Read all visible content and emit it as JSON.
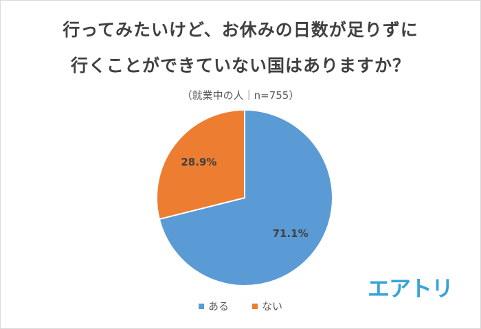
{
  "chart_data": {
    "type": "pie",
    "title_line1": "行ってみたいけど、お休みの日数が足りずに",
    "title_line2": "行くことができていない国はありますか？",
    "subtitle": "（就業中の人｜n=755）",
    "categories": [
      "ある",
      "ない"
    ],
    "values": [
      71.1,
      28.9
    ],
    "unit": "%",
    "data_labels": [
      "71.1%",
      "28.9%"
    ],
    "colors": [
      "#5b9bd5",
      "#ed7d31"
    ],
    "legend_position": "bottom",
    "start_angle": "12 o'clock, clockwise"
  },
  "logo_text": "エアトリ"
}
